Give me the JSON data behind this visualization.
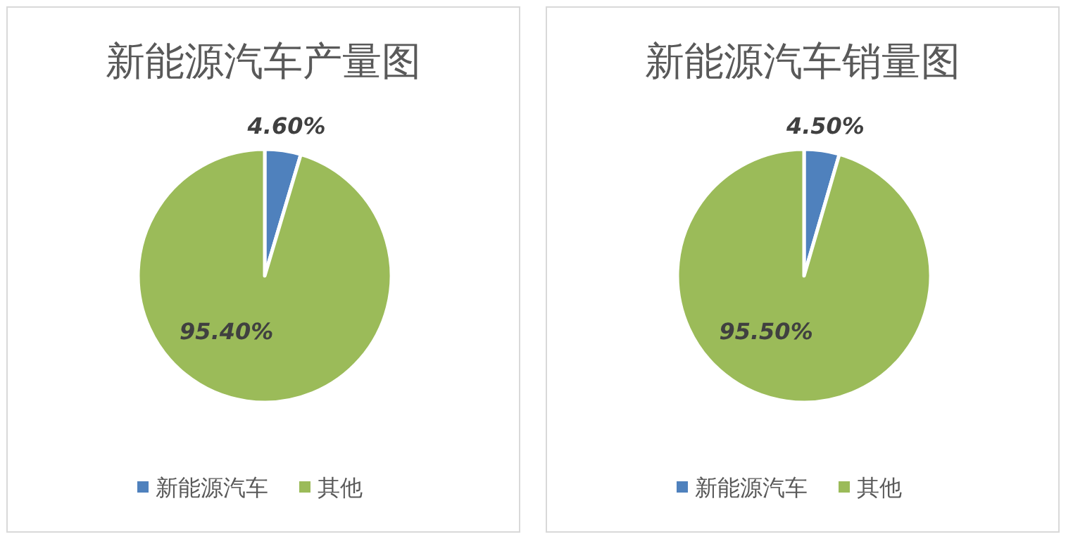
{
  "chart_data": [
    {
      "type": "pie",
      "title": "新能源汽车产量图",
      "categories": [
        "新能源汽车",
        "其他"
      ],
      "values": [
        4.6,
        95.4
      ],
      "colors": [
        "#4f81bd",
        "#9bbb59"
      ],
      "value_labels": [
        "4.60%",
        "95.40%"
      ],
      "legend": "bottom"
    },
    {
      "type": "pie",
      "title": "新能源汽车销量图",
      "categories": [
        "新能源汽车",
        "其他"
      ],
      "values": [
        4.5,
        95.5
      ],
      "colors": [
        "#4f81bd",
        "#9bbb59"
      ],
      "value_labels": [
        "4.50%",
        "95.50%"
      ],
      "legend": "bottom"
    }
  ]
}
